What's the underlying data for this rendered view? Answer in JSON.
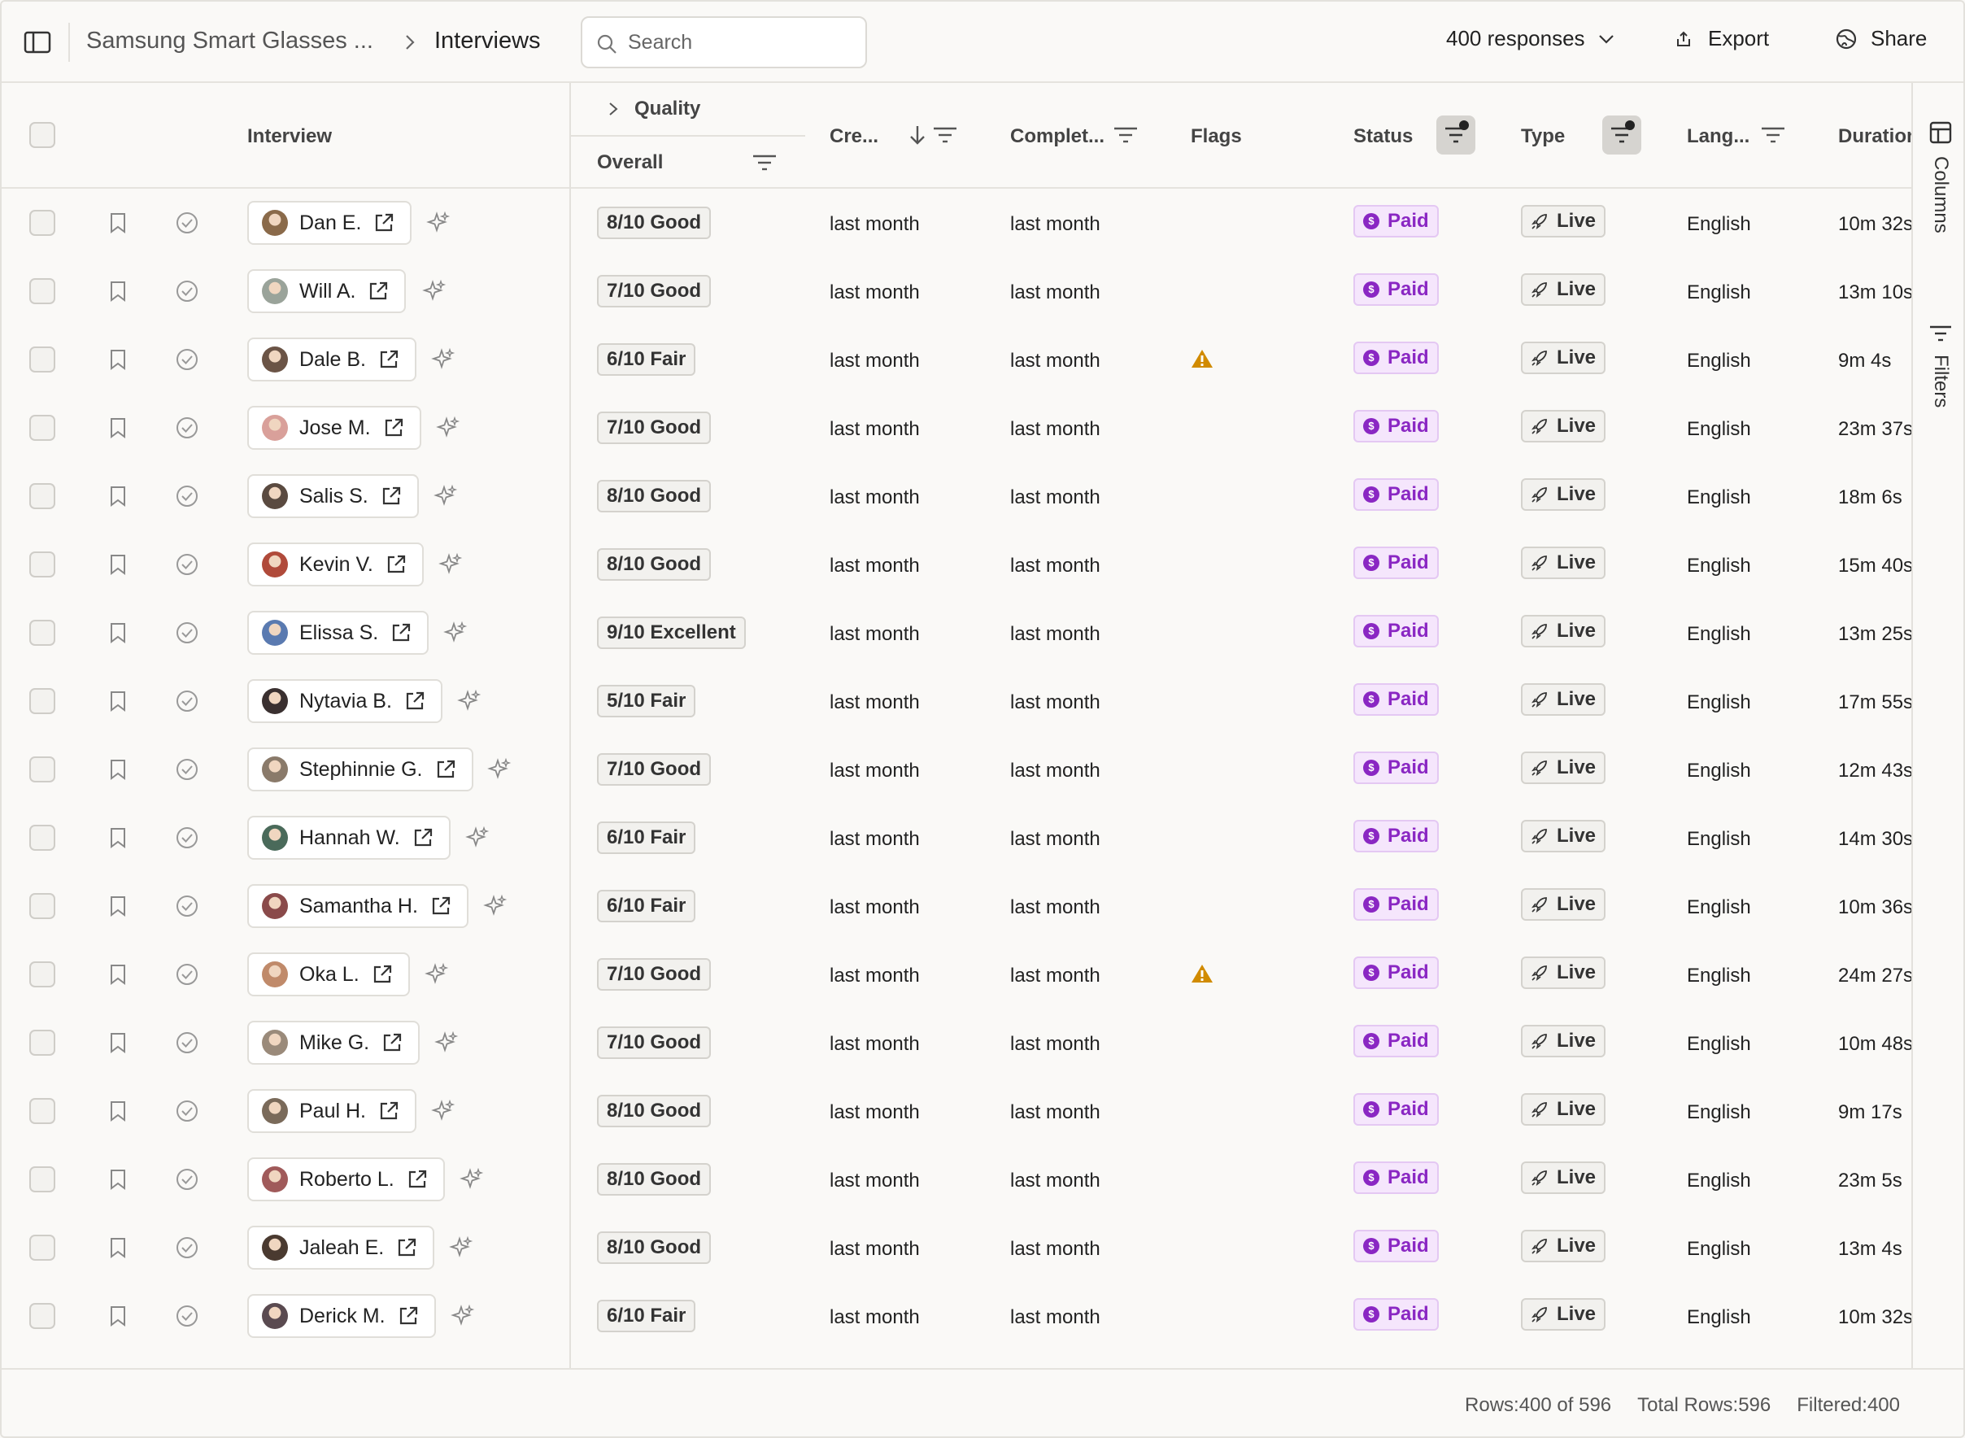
{
  "topbar": {
    "project": "Samsung Smart Glasses ...",
    "current": "Interviews",
    "search_placeholder": "Search",
    "responses": "400 responses",
    "export": "Export",
    "share": "Share"
  },
  "columns": {
    "interview": "Interview",
    "quality_group": "Quality",
    "overall": "Overall",
    "created": "Cre...",
    "completed": "Complet...",
    "flags": "Flags",
    "status": "Status",
    "type": "Type",
    "language": "Lang...",
    "duration": "Duration"
  },
  "rail": {
    "columns": "Columns",
    "filters": "Filters"
  },
  "rows": [
    {
      "name": "Dan E.",
      "quality": "8/10 Good",
      "created": "last month",
      "completed": "last month",
      "flag": false,
      "status": "Paid",
      "type": "Live",
      "language": "English",
      "duration": "10m 32s",
      "avatar_color": "#8a6a4a"
    },
    {
      "name": "Will A.",
      "quality": "7/10 Good",
      "created": "last month",
      "completed": "last month",
      "flag": false,
      "status": "Paid",
      "type": "Live",
      "language": "English",
      "duration": "13m 10s",
      "avatar_color": "#9aa39a"
    },
    {
      "name": "Dale B.",
      "quality": "6/10 Fair",
      "created": "last month",
      "completed": "last month",
      "flag": true,
      "status": "Paid",
      "type": "Live",
      "language": "English",
      "duration": "9m 4s",
      "avatar_color": "#6b5446"
    },
    {
      "name": "Jose M.",
      "quality": "7/10 Good",
      "created": "last month",
      "completed": "last month",
      "flag": false,
      "status": "Paid",
      "type": "Live",
      "language": "English",
      "duration": "23m 37s",
      "avatar_color": "#d9a09a"
    },
    {
      "name": "Salis S.",
      "quality": "8/10 Good",
      "created": "last month",
      "completed": "last month",
      "flag": false,
      "status": "Paid",
      "type": "Live",
      "language": "English",
      "duration": "18m 6s",
      "avatar_color": "#5a4a40"
    },
    {
      "name": "Kevin V.",
      "quality": "8/10 Good",
      "created": "last month",
      "completed": "last month",
      "flag": false,
      "status": "Paid",
      "type": "Live",
      "language": "English",
      "duration": "15m 40s",
      "avatar_color": "#b04a3a"
    },
    {
      "name": "Elissa S.",
      "quality": "9/10 Excellent",
      "created": "last month",
      "completed": "last month",
      "flag": false,
      "status": "Paid",
      "type": "Live",
      "language": "English",
      "duration": "13m 25s",
      "avatar_color": "#5a7ab0"
    },
    {
      "name": "Nytavia B.",
      "quality": "5/10 Fair",
      "created": "last month",
      "completed": "last month",
      "flag": false,
      "status": "Paid",
      "type": "Live",
      "language": "English",
      "duration": "17m 55s",
      "avatar_color": "#3a3030"
    },
    {
      "name": "Stephinnie G.",
      "quality": "7/10 Good",
      "created": "last month",
      "completed": "last month",
      "flag": false,
      "status": "Paid",
      "type": "Live",
      "language": "English",
      "duration": "12m 43s",
      "avatar_color": "#8a7a6a"
    },
    {
      "name": "Hannah W.",
      "quality": "6/10 Fair",
      "created": "last month",
      "completed": "last month",
      "flag": false,
      "status": "Paid",
      "type": "Live",
      "language": "English",
      "duration": "14m 30s",
      "avatar_color": "#4a6a5a"
    },
    {
      "name": "Samantha H.",
      "quality": "6/10 Fair",
      "created": "last month",
      "completed": "last month",
      "flag": false,
      "status": "Paid",
      "type": "Live",
      "language": "English",
      "duration": "10m 36s",
      "avatar_color": "#8a4a4a"
    },
    {
      "name": "Oka L.",
      "quality": "7/10 Good",
      "created": "last month",
      "completed": "last month",
      "flag": true,
      "status": "Paid",
      "type": "Live",
      "language": "English",
      "duration": "24m 27s",
      "avatar_color": "#c08a6a"
    },
    {
      "name": "Mike G.",
      "quality": "7/10 Good",
      "created": "last month",
      "completed": "last month",
      "flag": false,
      "status": "Paid",
      "type": "Live",
      "language": "English",
      "duration": "10m 48s",
      "avatar_color": "#9a8a7a"
    },
    {
      "name": "Paul H.",
      "quality": "8/10 Good",
      "created": "last month",
      "completed": "last month",
      "flag": false,
      "status": "Paid",
      "type": "Live",
      "language": "English",
      "duration": "9m 17s",
      "avatar_color": "#7a6a5a"
    },
    {
      "name": "Roberto L.",
      "quality": "8/10 Good",
      "created": "last month",
      "completed": "last month",
      "flag": false,
      "status": "Paid",
      "type": "Live",
      "language": "English",
      "duration": "23m 5s",
      "avatar_color": "#a05a5a"
    },
    {
      "name": "Jaleah E.",
      "quality": "8/10 Good",
      "created": "last month",
      "completed": "last month",
      "flag": false,
      "status": "Paid",
      "type": "Live",
      "language": "English",
      "duration": "13m 4s",
      "avatar_color": "#4a3a30"
    },
    {
      "name": "Derick M.",
      "quality": "6/10 Fair",
      "created": "last month",
      "completed": "last month",
      "flag": false,
      "status": "Paid",
      "type": "Live",
      "language": "English",
      "duration": "10m 32s",
      "avatar_color": "#5a4a50"
    }
  ],
  "footer": {
    "rows": "Rows:400 of 596",
    "total": "Total Rows:596",
    "filtered": "Filtered:400"
  },
  "colors": {
    "paid_text": "#8a27c3",
    "paid_bg": "#f5e6fc",
    "warning": "#d18b00"
  }
}
